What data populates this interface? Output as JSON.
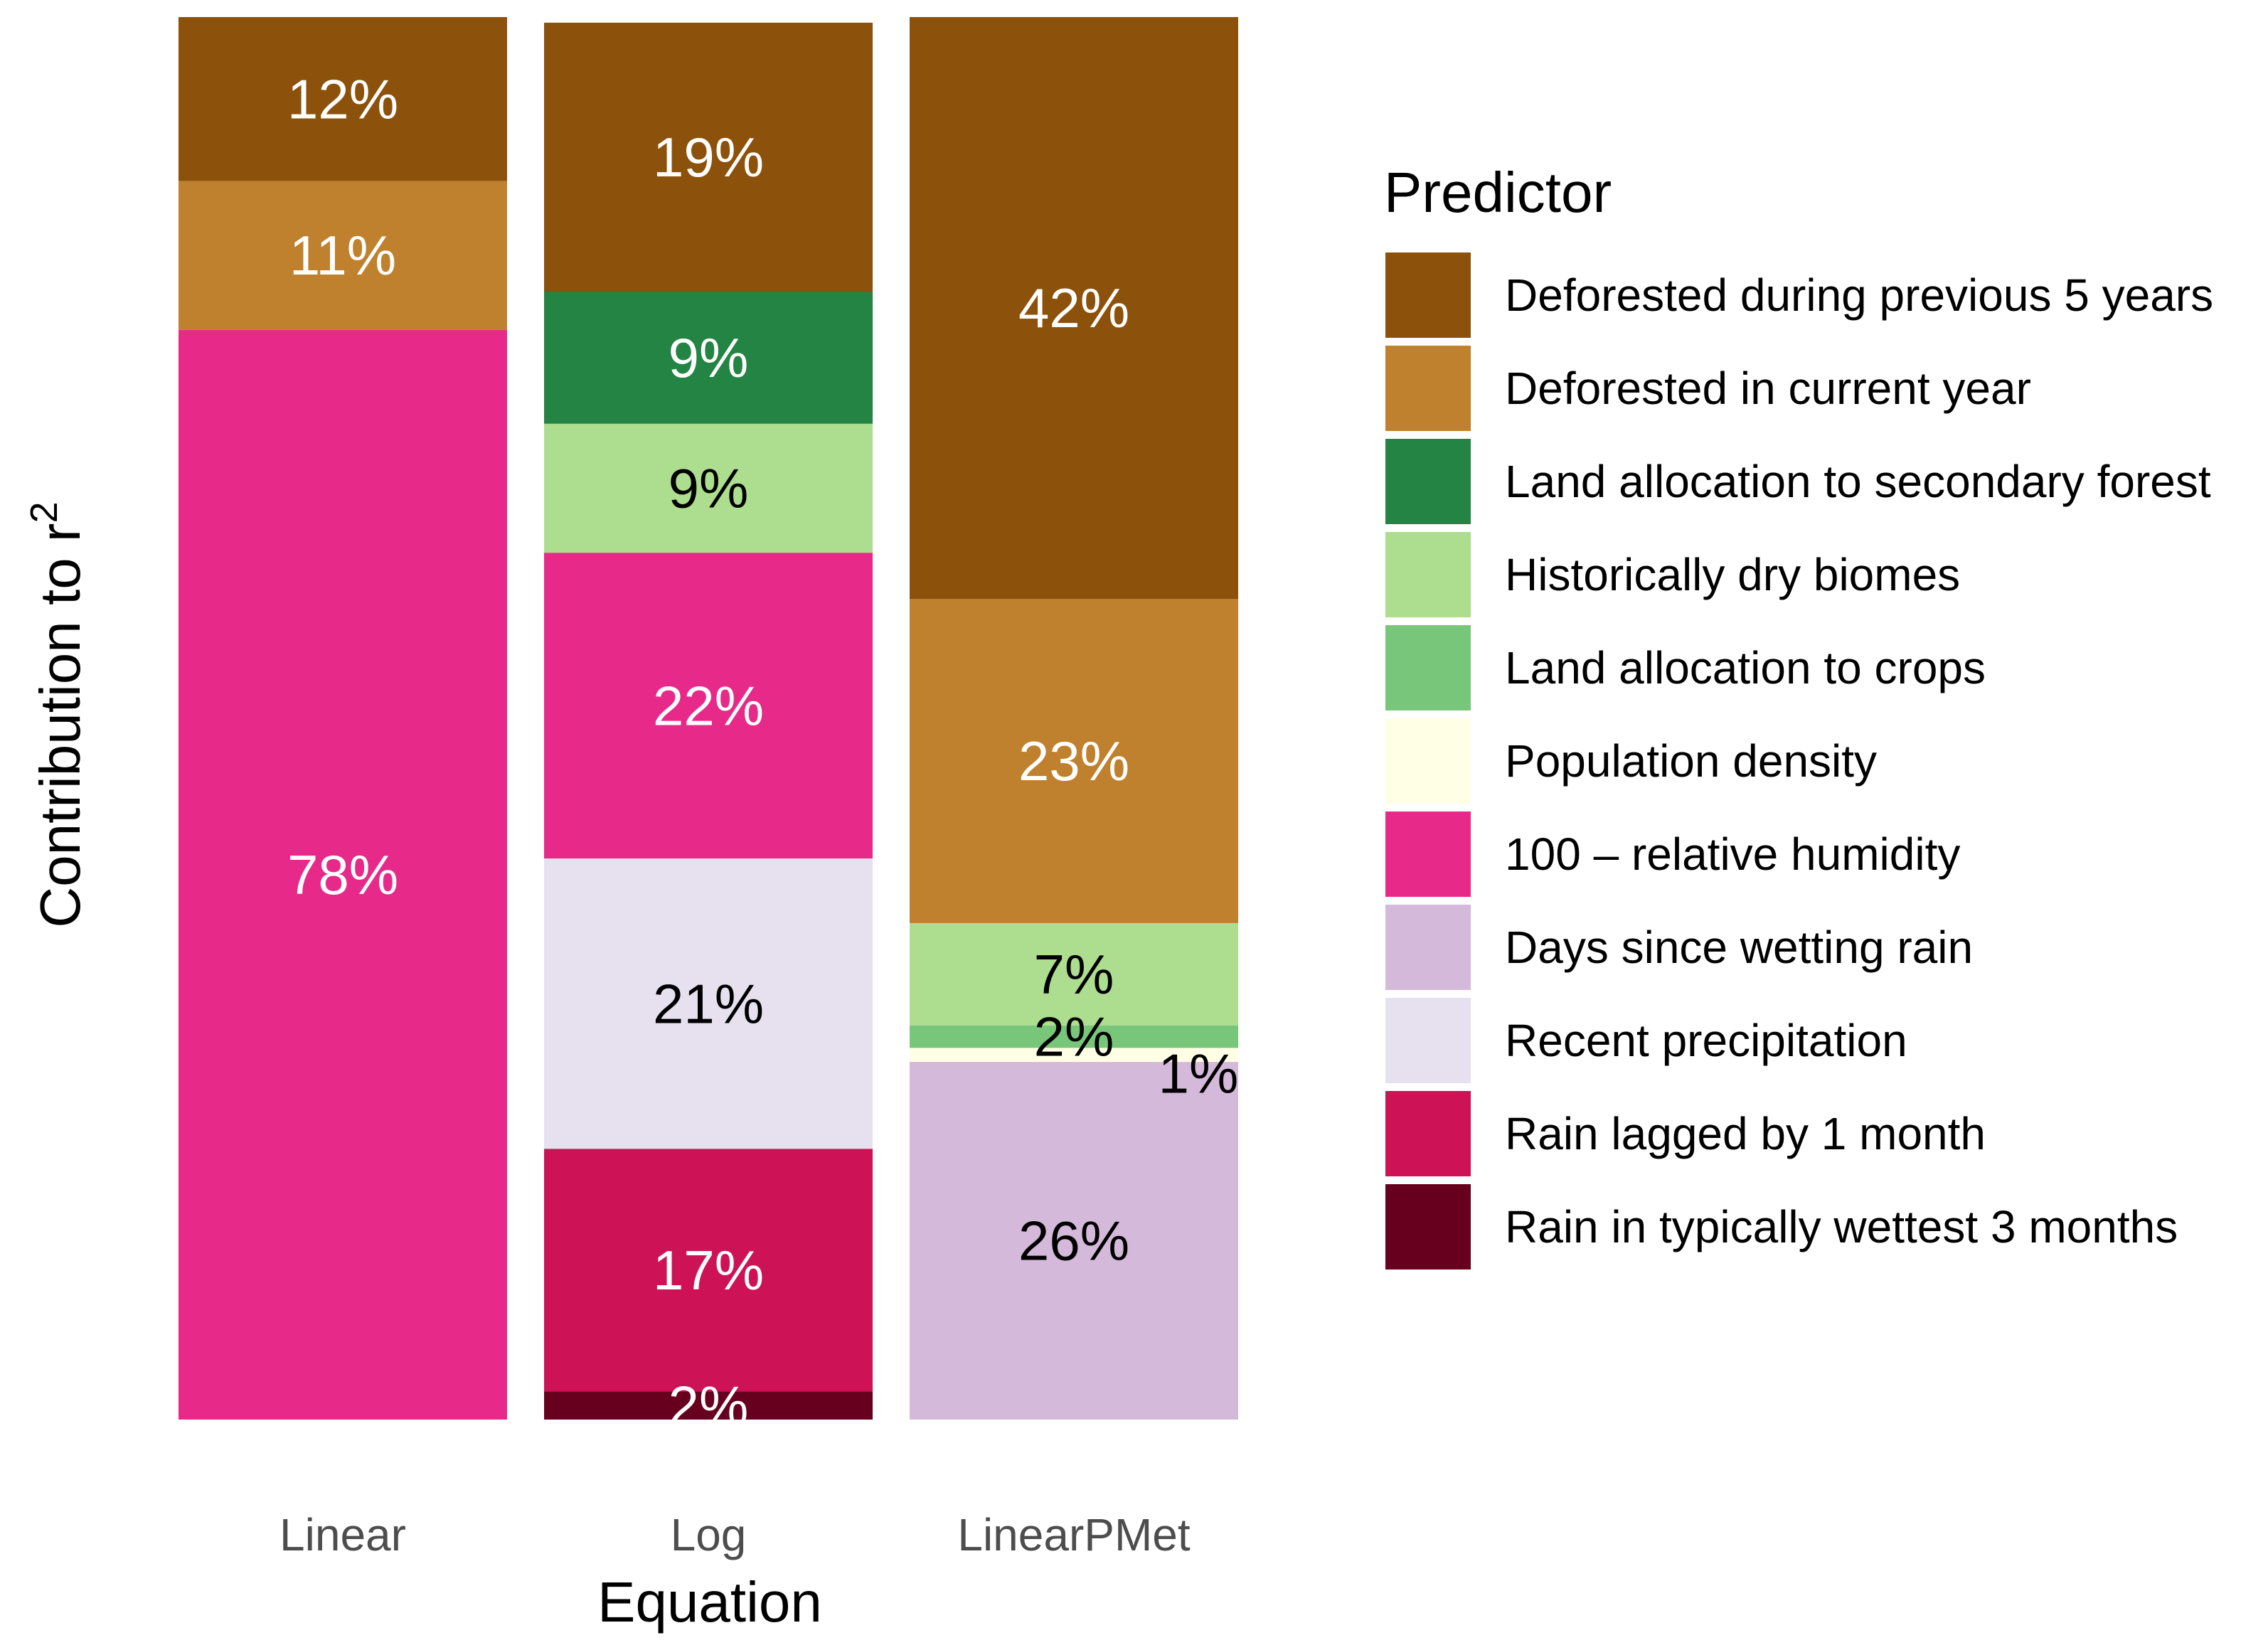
{
  "chart_data": {
    "type": "bar",
    "stacked": true,
    "xlabel": "Equation",
    "ylabel": "Contribution to r",
    "ylabel_superscript": "2",
    "ylim": [
      0,
      100
    ],
    "grid": false,
    "legend_title": "Predictor",
    "legend_position": "right",
    "predictors": [
      {
        "name": "Deforested during previous 5 years",
        "color": "#8c510a"
      },
      {
        "name": "Deforested in current year",
        "color": "#bf812d"
      },
      {
        "name": "Land allocation to secondary forest",
        "color": "#238443"
      },
      {
        "name": "Historically dry biomes",
        "color": "#addd8e"
      },
      {
        "name": "Land allocation to crops",
        "color": "#78c679"
      },
      {
        "name": "Population density",
        "color": "#ffffe5"
      },
      {
        "name": "100 – relative humidity",
        "color": "#e7298a"
      },
      {
        "name": "Days since wetting rain",
        "color": "#d4b9da"
      },
      {
        "name": "Recent precipitation",
        "color": "#e7e1ef"
      },
      {
        "name": "Rain lagged by 1 month",
        "color": "#ce1256"
      },
      {
        "name": "Rain in typically wettest 3 months",
        "color": "#67001f"
      }
    ],
    "categories": [
      "Linear",
      "Log",
      "LinearPMet"
    ],
    "bars": [
      {
        "category": "Linear",
        "segments": [
          {
            "predictor": "Deforested during previous 5 years",
            "value": 11.7,
            "label": "12%",
            "label_color": "#ffffff"
          },
          {
            "predictor": "Deforested in current year",
            "value": 10.6,
            "label": "11%",
            "label_color": "#ffffff"
          },
          {
            "predictor": "100 – relative humidity",
            "value": 77.7,
            "label": "78%",
            "label_color": "#ffffff"
          }
        ]
      },
      {
        "category": "Log",
        "segments": [
          {
            "predictor": "Deforested during previous 5 years",
            "value": 19.2,
            "label": "19%",
            "label_color": "#ffffff"
          },
          {
            "predictor": "Land allocation to secondary forest",
            "value": 9.4,
            "label": "9%",
            "label_color": "#ffffff"
          },
          {
            "predictor": "Historically dry biomes",
            "value": 9.2,
            "label": "9%",
            "label_color": "#000000"
          },
          {
            "predictor": "100 – relative humidity",
            "value": 21.8,
            "label": "22%",
            "label_color": "#ffffff"
          },
          {
            "predictor": "Recent precipitation",
            "value": 20.7,
            "label": "21%",
            "label_color": "#000000"
          },
          {
            "predictor": "Rain lagged by 1 month",
            "value": 17.3,
            "label": "17%",
            "label_color": "#ffffff"
          },
          {
            "predictor": "Rain in typically wettest 3 months",
            "value": 2.0,
            "label": "2%",
            "label_color": "#ffffff"
          }
        ]
      },
      {
        "category": "LinearPMet",
        "segments": [
          {
            "predictor": "Deforested during previous 5 years",
            "value": 41.5,
            "label": "42%",
            "label_color": "#ffffff"
          },
          {
            "predictor": "Deforested in current year",
            "value": 23.1,
            "label": "23%",
            "label_color": "#ffffff"
          },
          {
            "predictor": "Historically dry biomes",
            "value": 7.3,
            "label": "7%",
            "label_color": "#000000"
          },
          {
            "predictor": "Land allocation to crops",
            "value": 1.6,
            "label": "2%",
            "label_color": "#000000"
          },
          {
            "predictor": "Population density",
            "value": 1.0,
            "label": "1%",
            "label_color": "#000000",
            "label_offset": "right"
          },
          {
            "predictor": "Days since wetting rain",
            "value": 25.5,
            "label": "26%",
            "label_color": "#000000"
          }
        ]
      }
    ]
  }
}
